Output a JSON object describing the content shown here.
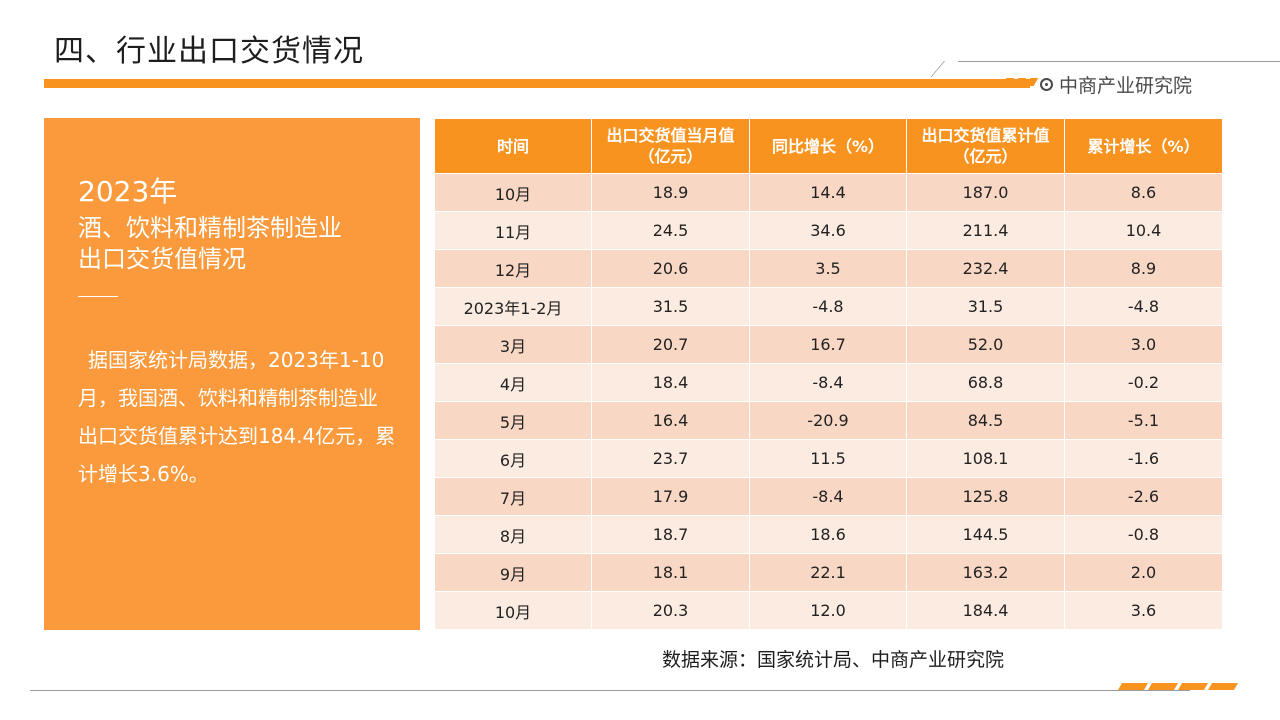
{
  "header": {
    "title": "四、行业出口交货情况",
    "brand": "中商产业研究院",
    "brand_icon": "target-icon",
    "accent_color": "#f7931e"
  },
  "summary": {
    "year": "2023年",
    "line1": "酒、饮料和精制茶制造业",
    "line2": "出口交货值情况",
    "body": "据国家统计局数据，2023年1-10月，我国酒、饮料和精制茶制造业出口交货值累计达到184.4亿元，累计增长3.6%。"
  },
  "table": {
    "headers": [
      "时间",
      "出口交货值当月值（亿元）",
      "同比增长（%）",
      "出口交货值累计值（亿元）",
      "累计增长（%）"
    ],
    "rows": [
      [
        "10月",
        "18.9",
        "14.4",
        "187.0",
        "8.6"
      ],
      [
        "11月",
        "24.5",
        "34.6",
        "211.4",
        "10.4"
      ],
      [
        "12月",
        "20.6",
        "3.5",
        "232.4",
        "8.9"
      ],
      [
        "2023年1-2月",
        "31.5",
        "-4.8",
        "31.5",
        "-4.8"
      ],
      [
        "3月",
        "20.7",
        "16.7",
        "52.0",
        "3.0"
      ],
      [
        "4月",
        "18.4",
        "-8.4",
        "68.8",
        "-0.2"
      ],
      [
        "5月",
        "16.4",
        "-20.9",
        "84.5",
        "-5.1"
      ],
      [
        "6月",
        "23.7",
        "11.5",
        "108.1",
        "-1.6"
      ],
      [
        "7月",
        "17.9",
        "-8.4",
        "125.8",
        "-2.6"
      ],
      [
        "8月",
        "18.7",
        "18.6",
        "144.5",
        "-0.8"
      ],
      [
        "9月",
        "18.1",
        "22.1",
        "163.2",
        "2.0"
      ],
      [
        "10月",
        "20.3",
        "12.0",
        "184.4",
        "3.6"
      ]
    ]
  },
  "footer": {
    "source": "数据来源：国家统计局、中商产业研究院"
  }
}
